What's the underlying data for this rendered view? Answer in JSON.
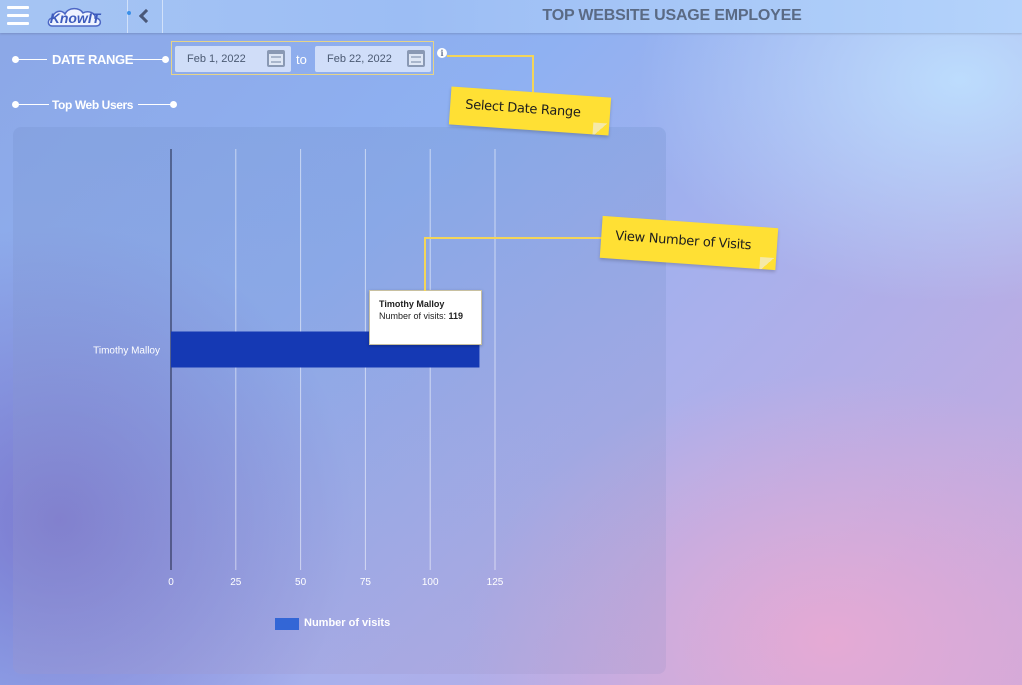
{
  "app": {
    "logo_text": "KnowIT",
    "title": "TOP WEBSITE USAGE EMPLOYEE"
  },
  "filters": {
    "section_label": "DATE RANGE",
    "start_date": "Feb 1, 2022",
    "end_date": "Feb 22, 2022",
    "to_label": "to",
    "info_icon": "info-icon"
  },
  "section": {
    "label": "Top Web Users"
  },
  "notes": {
    "date_range": "Select Date Range",
    "visits": "View Number of Visits"
  },
  "tooltip": {
    "name": "Timothy Malloy",
    "label": "Number of visits:",
    "value": "119"
  },
  "colors": {
    "bar": "#1539b4",
    "legend": "#3366d6",
    "sticky": "#ffe034"
  },
  "chart_data": {
    "type": "bar",
    "orientation": "horizontal",
    "categories": [
      "Timothy Malloy"
    ],
    "series": [
      {
        "name": "Number of visits",
        "values": [
          119
        ]
      }
    ],
    "xlim": [
      0,
      125
    ],
    "xticks": [
      0,
      25,
      50,
      75,
      100,
      125
    ],
    "grid": true,
    "legend_position": "bottom"
  }
}
